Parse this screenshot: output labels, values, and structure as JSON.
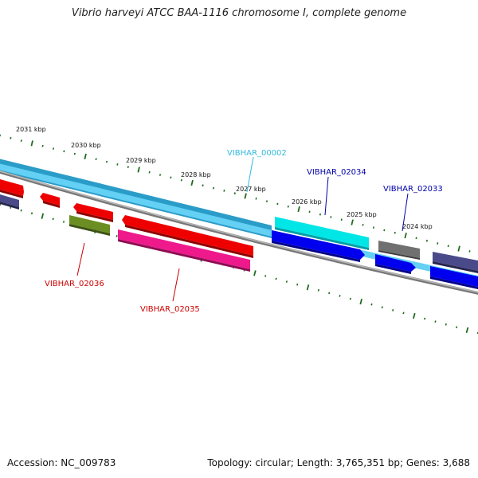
{
  "title": "Vibrio harveyi ATCC BAA-1116 chromosome I, complete genome",
  "footer": {
    "accession": "Accession: NC_009783",
    "summary": "Topology: circular; Length: 3,765,351 bp; Genes: 3,688"
  },
  "colors": {
    "background": "#ffffff",
    "backbone_ring": "#888888",
    "tick": "#1f6b1f",
    "label_red": "#cc0000",
    "label_blue": "#0000aa",
    "label_cyan": "#33bbdd",
    "gene_red": "#ee0000",
    "gene_blue": "#0000ee",
    "gene_cyan": "#00e6e6",
    "gene_pink": "#ee1a8c",
    "gene_olive": "#6b8e23",
    "gene_grey": "#707070",
    "gene_purple": "#4a4a8a",
    "feature_band": "#55c8f0"
  },
  "ruler": {
    "labels": [
      "2031 kbp",
      "2030 kbp",
      "2029 kbp",
      "2028 kbp",
      "2027 kbp",
      "2026 kbp",
      "2025 kbp",
      "2024 kbp"
    ]
  },
  "gene_labels": [
    {
      "id": "VIBHAR_00002",
      "text": "VIBHAR_00002",
      "color": "#33bbdd"
    },
    {
      "id": "VIBHAR_02034",
      "text": "VIBHAR_02034",
      "color": "#0000aa"
    },
    {
      "id": "VIBHAR_02033",
      "text": "VIBHAR_02033",
      "color": "#0000aa"
    },
    {
      "id": "VIBHAR_02036",
      "text": "VIBHAR_02036",
      "color": "#cc0000"
    },
    {
      "id": "VIBHAR_02035",
      "text": "VIBHAR_02035",
      "color": "#cc0000"
    }
  ]
}
